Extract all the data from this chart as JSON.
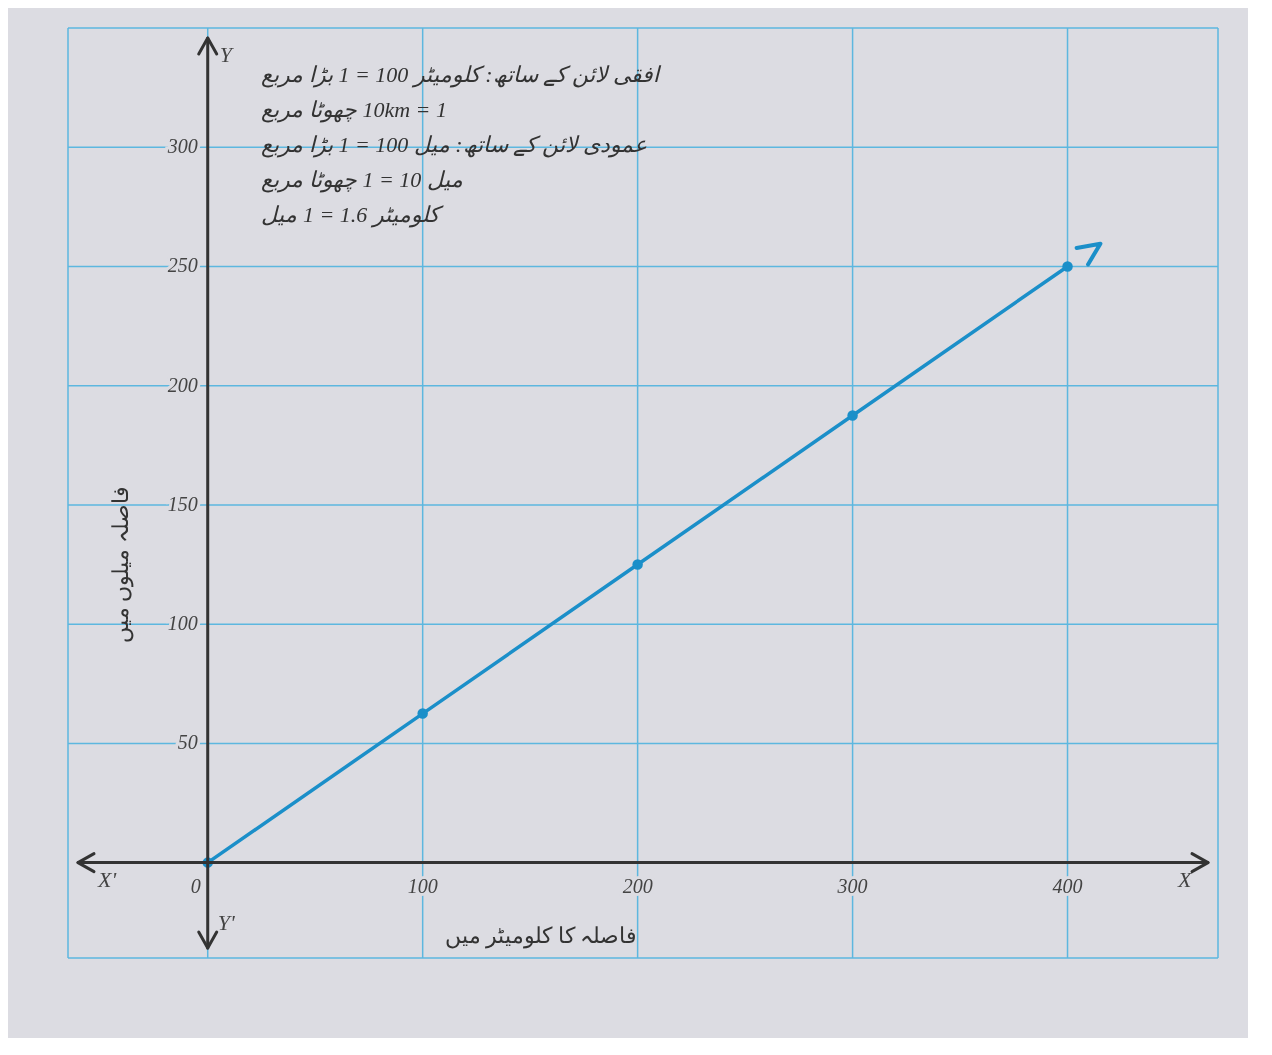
{
  "chart_data": {
    "type": "line",
    "xlabel": "فاصلہ کا کلومیٹر میں",
    "ylabel": "فاصلہ میلوں میں",
    "annotations": [
      "افقی لائن کے ساتھ: کلومیٹر 100 = 1 بڑا مربع",
      "1 = 10km چھوٹا مربع",
      "عمودی لائن کے ساتھ: میل 100 = 1 بڑا مربع",
      "میل 10 = 1 چھوٹا مربع",
      "کلومیٹر 1.6 = 1 میل",
      "X",
      "X'",
      "Y",
      "Y'"
    ],
    "x": [
      0,
      100,
      200,
      300,
      400
    ],
    "series": [
      {
        "color": "#1b8fc9",
        "values": [
          0,
          62.5,
          125,
          187.5,
          250
        ]
      }
    ],
    "xlim": [
      -65,
      470
    ],
    "xticks": [
      0,
      100,
      200,
      300,
      400
    ],
    "ylim": [
      -40,
      350
    ],
    "yticks": [
      50,
      100,
      150,
      200,
      250,
      300
    ],
    "grid": true,
    "marker": "circle",
    "line_style": "solid"
  }
}
